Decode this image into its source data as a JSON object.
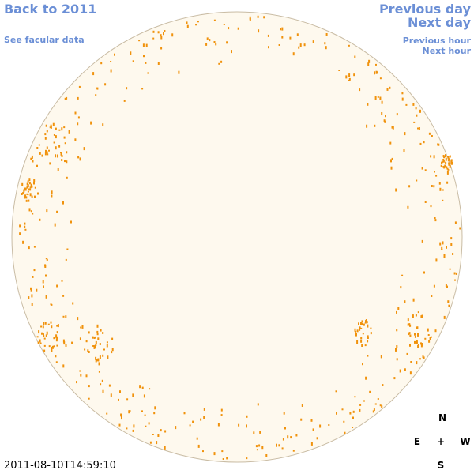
{
  "nav": {
    "back": "Back to 2011",
    "facular": "See facular data",
    "previous_day": "Previous day",
    "next_day": "Next day",
    "previous_hour": "Previous hour",
    "next_hour": "Next hour"
  },
  "compass": {
    "north": "N",
    "east": "E",
    "center": "+",
    "west": "W",
    "south": "S"
  },
  "timestamp": "2011-08-10T14:59:10"
}
